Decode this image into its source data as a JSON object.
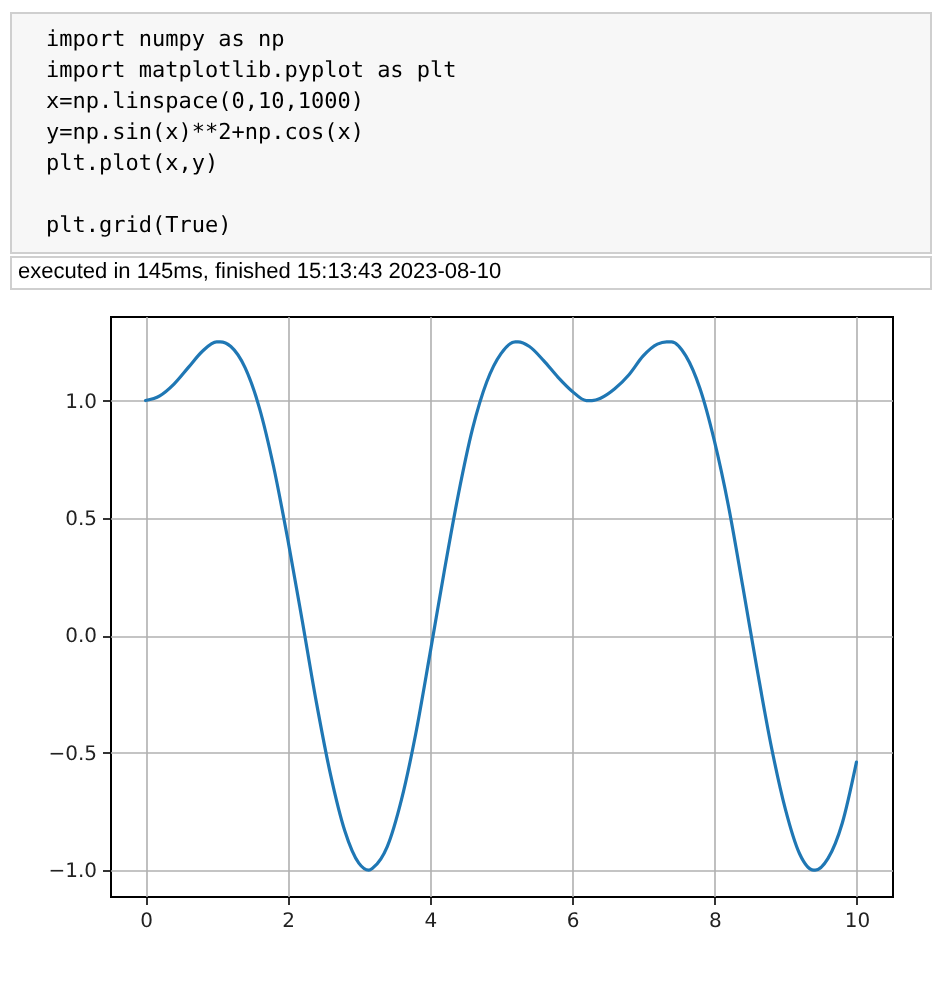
{
  "chart_data": {
    "type": "line",
    "annotations": [
      "import numpy as np\nimport matplotlib.pyplot as plt\nx=np.linspace(0,10,1000)\ny=np.sin(x)**2+np.cos(x)\nplt.plot(x,y)\n\nplt.grid(True)",
      "executed in 145ms, finished 15:13:43 2023-08-10"
    ],
    "x": [
      0,
      0.2,
      0.4,
      0.6,
      0.8,
      1.0,
      1.05,
      1.2,
      1.4,
      1.6,
      1.8,
      2.0,
      2.2,
      2.4,
      2.6,
      2.8,
      3.0,
      3.14,
      3.2,
      3.4,
      3.6,
      3.8,
      4.0,
      4.2,
      4.4,
      4.6,
      4.8,
      5.0,
      5.2,
      5.24,
      5.4,
      5.6,
      5.8,
      6.0,
      6.2,
      6.28,
      6.4,
      6.6,
      6.8,
      7.0,
      7.2,
      7.33,
      7.4,
      7.6,
      7.8,
      8.0,
      8.2,
      8.4,
      8.6,
      8.8,
      9.0,
      9.2,
      9.4,
      9.42,
      9.6,
      9.8,
      10.0
    ],
    "values": [
      1.0,
      1.02,
      1.07,
      1.14,
      1.21,
      1.25,
      1.25,
      1.23,
      1.14,
      0.97,
      0.72,
      0.41,
      0.07,
      -0.28,
      -0.59,
      -0.83,
      -0.97,
      -1.0,
      -0.99,
      -0.9,
      -0.7,
      -0.42,
      -0.08,
      0.27,
      0.6,
      0.88,
      1.08,
      1.2,
      1.25,
      1.25,
      1.23,
      1.17,
      1.1,
      1.04,
      1.0,
      1.0,
      1.01,
      1.05,
      1.11,
      1.19,
      1.24,
      1.25,
      1.25,
      1.19,
      1.05,
      0.83,
      0.55,
      0.21,
      -0.14,
      -0.47,
      -0.74,
      -0.93,
      -1.0,
      -1.0,
      -0.95,
      -0.8,
      -0.54
    ],
    "color": "#1f77b4",
    "xlim": [
      -0.5,
      10.5
    ],
    "xticks": [
      0,
      2,
      4,
      6,
      8,
      10
    ],
    "ylim": [
      -1.11,
      1.36
    ],
    "yticks": [
      {
        "value": -1.0,
        "label": "−1.0"
      },
      {
        "value": -0.5,
        "label": "−0.5"
      },
      {
        "value": 0.0,
        "label": "0.0"
      },
      {
        "value": 0.5,
        "label": "0.5"
      },
      {
        "value": 1.0,
        "label": "1.0"
      }
    ],
    "grid": true
  }
}
